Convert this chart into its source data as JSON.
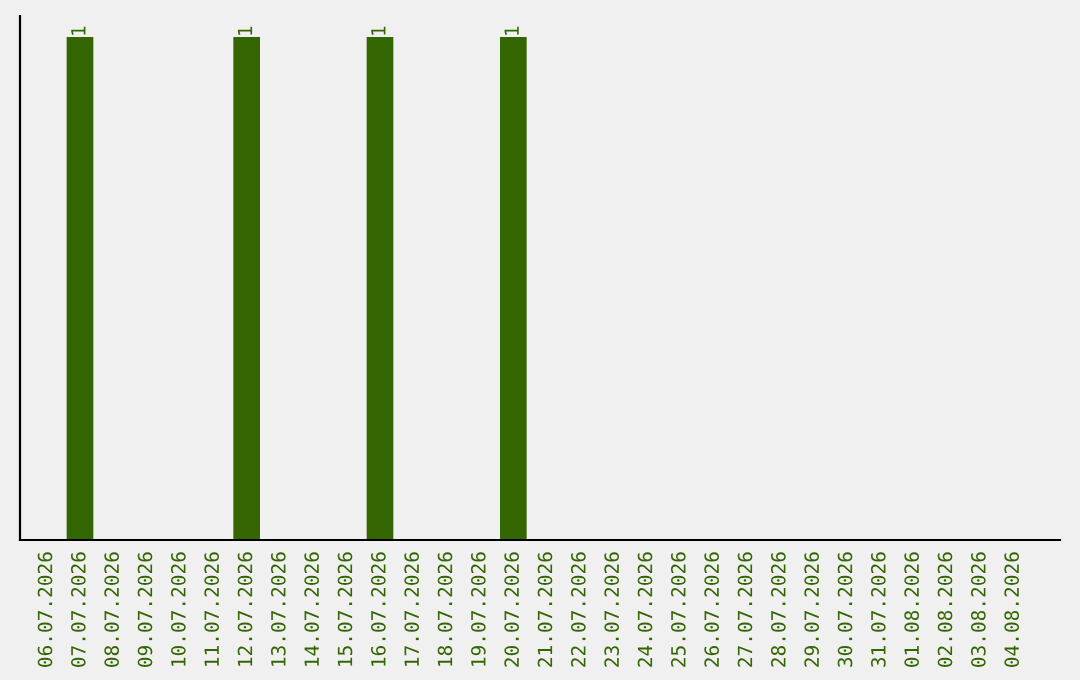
{
  "chart_data": {
    "type": "bar",
    "categories": [
      "06.07.2026",
      "07.07.2026",
      "08.07.2026",
      "09.07.2026",
      "10.07.2026",
      "11.07.2026",
      "12.07.2026",
      "13.07.2026",
      "14.07.2026",
      "15.07.2026",
      "16.07.2026",
      "17.07.2026",
      "18.07.2026",
      "19.07.2026",
      "20.07.2026",
      "21.07.2026",
      "22.07.2026",
      "23.07.2026",
      "24.07.2026",
      "25.07.2026",
      "26.07.2026",
      "27.07.2026",
      "28.07.2026",
      "29.07.2026",
      "30.07.2026",
      "31.07.2026",
      "01.08.2026",
      "02.08.2026",
      "03.08.2026",
      "04.08.2026"
    ],
    "values": [
      0,
      1,
      0,
      0,
      0,
      0,
      1,
      0,
      0,
      0,
      1,
      0,
      0,
      0,
      1,
      0,
      0,
      0,
      0,
      0,
      0,
      0,
      0,
      0,
      0,
      0,
      0,
      0,
      0,
      0
    ],
    "value_labels": [
      null,
      "1",
      null,
      null,
      null,
      null,
      "1",
      null,
      null,
      null,
      "1",
      null,
      null,
      null,
      "1",
      null,
      null,
      null,
      null,
      null,
      null,
      null,
      null,
      null,
      null,
      null,
      null,
      null,
      null,
      null
    ],
    "color": "#336600",
    "tick_labels": "x",
    "grid": false,
    "legend": false
  }
}
